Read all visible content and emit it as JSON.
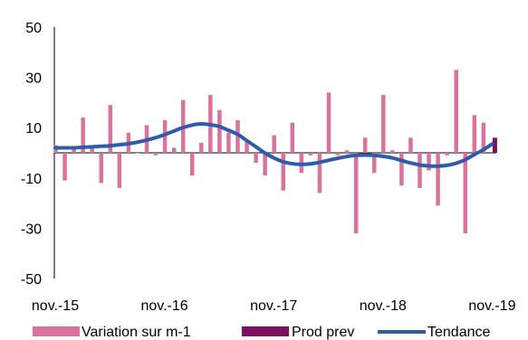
{
  "chart_data": {
    "type": "bar",
    "title": "",
    "xlabel": "",
    "ylabel": "",
    "ylim": [
      -50,
      50
    ],
    "yticks": [
      50,
      30,
      10,
      -10,
      -30,
      -50
    ],
    "x_tick_labels": [
      "nov.-15",
      "nov.-16",
      "nov.-17",
      "nov.-18",
      "nov.-19"
    ],
    "x_tick_month_index": [
      0,
      12,
      24,
      36,
      48
    ],
    "grid": false,
    "legend_position": "bottom",
    "series": [
      {
        "name": "Variation sur m-1",
        "type": "bar",
        "color": "#d9739e",
        "values": [
          3,
          -11,
          2,
          14,
          2,
          -12,
          19,
          -14,
          8,
          0,
          11,
          -1,
          13,
          2,
          21,
          -9,
          4,
          23,
          17,
          8,
          13,
          5,
          -4,
          -9,
          7,
          -15,
          12,
          -8,
          -1,
          -16,
          24,
          -1,
          1,
          -32,
          6,
          -8,
          23,
          1,
          -13,
          6,
          -14,
          -7,
          -21,
          -1,
          33,
          -32,
          15,
          12
        ]
      },
      {
        "name": "Prod prev",
        "type": "bar",
        "color": "#7a1060",
        "x_index": [
          48
        ],
        "values": [
          6
        ]
      },
      {
        "name": "Tendance",
        "type": "line",
        "color": "#2e5ca8",
        "values": [
          2,
          2,
          2,
          2.2,
          2.4,
          2.6,
          2.8,
          3.2,
          3.6,
          4.2,
          5,
          6,
          7.2,
          8.6,
          10,
          11,
          11.5,
          11.2,
          10.5,
          9,
          7.4,
          5,
          2.5,
          0,
          -2,
          -3.5,
          -4.3,
          -4.6,
          -4.4,
          -3.8,
          -3,
          -2.2,
          -1.5,
          -1,
          -0.9,
          -1,
          -1.4,
          -2,
          -3,
          -4,
          -4.8,
          -5.2,
          -5.3,
          -5,
          -4.2,
          -2.8,
          -0.8,
          1.2,
          3.5
        ]
      }
    ]
  }
}
